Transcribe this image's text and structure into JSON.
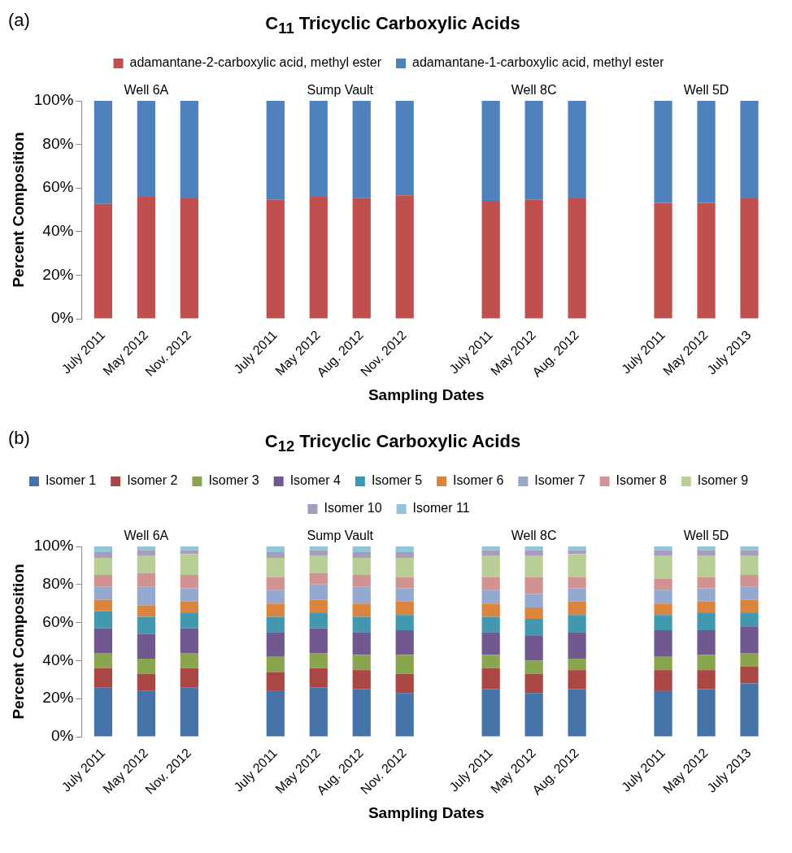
{
  "chart_data": [
    {
      "type": "bar",
      "title": "C$_{11}$ Tricyclic Carboxylic Acids",
      "xlabel": "Sampling Dates",
      "ylabel": "Percent Composition",
      "stacked": true,
      "legend": "top",
      "grid": false,
      "annotations": [
        "(a)",
        "Well 6A",
        "Sump Vault",
        "Well 8C",
        "Well 5D"
      ],
      "categories": [
        "July 2011",
        "May 2012",
        "Nov. 2012",
        null,
        "July 2011",
        "May 2012",
        "Aug. 2012",
        "Nov. 2012",
        null,
        "July 2011",
        "May 2012",
        "Aug. 2012",
        null,
        "July 2011",
        "May 2012",
        "July 2013"
      ],
      "ylim": [
        0,
        100
      ],
      "yticks": [
        {
          "value": 0,
          "label": "0%"
        },
        {
          "value": 20,
          "label": "20%"
        },
        {
          "value": 40,
          "label": "40%"
        },
        {
          "value": 60,
          "label": "60%"
        },
        {
          "value": 80,
          "label": "80%"
        },
        {
          "value": 100,
          "label": "100%"
        }
      ],
      "series": [
        {
          "name": "adamantane-2-carboxylic acid, methyl ester",
          "color": "#c0504d",
          "values": [
            52.7,
            56.0,
            55.2,
            null,
            54.6,
            56.0,
            55.5,
            56.6,
            null,
            54.1,
            54.6,
            55.2,
            null,
            53.2,
            53.2,
            55.2
          ]
        },
        {
          "name": "adamantane-1-carboxylic acid, methyl ester",
          "color": "#4f81bd",
          "values": [
            47.3,
            44.0,
            44.8,
            null,
            45.4,
            44.0,
            44.5,
            43.4,
            null,
            45.9,
            45.4,
            44.8,
            null,
            46.8,
            46.8,
            44.8
          ]
        }
      ]
    },
    {
      "type": "bar",
      "title": "C$_{12}$ Tricyclic Carboxylic Acids",
      "xlabel": "Sampling Dates",
      "ylabel": "Percent Composition",
      "stacked": true,
      "legend": "top",
      "grid": false,
      "annotations": [
        "(b)",
        "Well 6A",
        "Sump Vault",
        "Well 8C",
        "Well 5D"
      ],
      "categories": [
        "July 2011",
        "May 2012",
        "Nov. 2012",
        null,
        "July 2011",
        "May 2012",
        "Aug. 2012",
        "Nov. 2012",
        null,
        "July 2011",
        "May 2012",
        "Aug. 2012",
        null,
        "July 2011",
        "May 2012",
        "July 2013"
      ],
      "ylim": [
        0,
        100
      ],
      "yticks": [
        {
          "value": 0,
          "label": "0%"
        },
        {
          "value": 20,
          "label": "20%"
        },
        {
          "value": 40,
          "label": "40%"
        },
        {
          "value": 60,
          "label": "60%"
        },
        {
          "value": 80,
          "label": "80%"
        },
        {
          "value": 100,
          "label": "100%"
        }
      ],
      "series": [
        {
          "name": "Isomer 1",
          "color": "#4572a7",
          "values": [
            26,
            24,
            26,
            null,
            24,
            26,
            25,
            23,
            null,
            25,
            23,
            25,
            null,
            24,
            25,
            28
          ]
        },
        {
          "name": "Isomer 2",
          "color": "#aa4643",
          "values": [
            10,
            9,
            10,
            null,
            10,
            10,
            10,
            10,
            null,
            11,
            10,
            10,
            null,
            11,
            10,
            9
          ]
        },
        {
          "name": "Isomer 3",
          "color": "#89a54e",
          "values": [
            8,
            8,
            8,
            null,
            8,
            8,
            8,
            10,
            null,
            7,
            7,
            6,
            null,
            7,
            8,
            7
          ]
        },
        {
          "name": "Isomer 4",
          "color": "#71588f",
          "values": [
            13,
            13,
            13,
            null,
            13,
            13,
            12,
            13,
            null,
            12,
            13,
            14,
            null,
            14,
            13,
            14
          ]
        },
        {
          "name": "Isomer 5",
          "color": "#4198af",
          "values": [
            9,
            9,
            8,
            null,
            8,
            8,
            8,
            8,
            null,
            8,
            9,
            9,
            null,
            8,
            9,
            7
          ]
        },
        {
          "name": "Isomer 6",
          "color": "#db843d",
          "values": [
            6,
            6,
            6,
            null,
            7,
            7,
            7,
            7,
            null,
            7,
            6,
            7,
            null,
            6,
            6,
            7
          ]
        },
        {
          "name": "Isomer 7",
          "color": "#93a9cf",
          "values": [
            7,
            10,
            7,
            null,
            7,
            8,
            9,
            7,
            null,
            7,
            7,
            7,
            null,
            7,
            7,
            7
          ]
        },
        {
          "name": "Isomer 8",
          "color": "#d19392",
          "values": [
            6,
            7,
            7,
            null,
            7,
            6,
            6,
            6,
            null,
            7,
            9,
            6,
            null,
            6,
            6,
            6
          ]
        },
        {
          "name": "Isomer 9",
          "color": "#b9cd96",
          "values": [
            9,
            9,
            11,
            null,
            10,
            9,
            9,
            10,
            null,
            11,
            11,
            12,
            null,
            12,
            11,
            10
          ]
        },
        {
          "name": "Isomer 10",
          "color": "#a99bbd",
          "values": [
            3,
            3,
            2,
            null,
            3,
            3,
            3,
            3,
            null,
            3,
            3,
            2,
            null,
            3,
            3,
            3
          ]
        },
        {
          "name": "Isomer 11",
          "color": "#92c5d8",
          "values": [
            3,
            2,
            2,
            null,
            3,
            2,
            3,
            3,
            null,
            2,
            2,
            2,
            null,
            2,
            2,
            2
          ]
        }
      ]
    }
  ]
}
